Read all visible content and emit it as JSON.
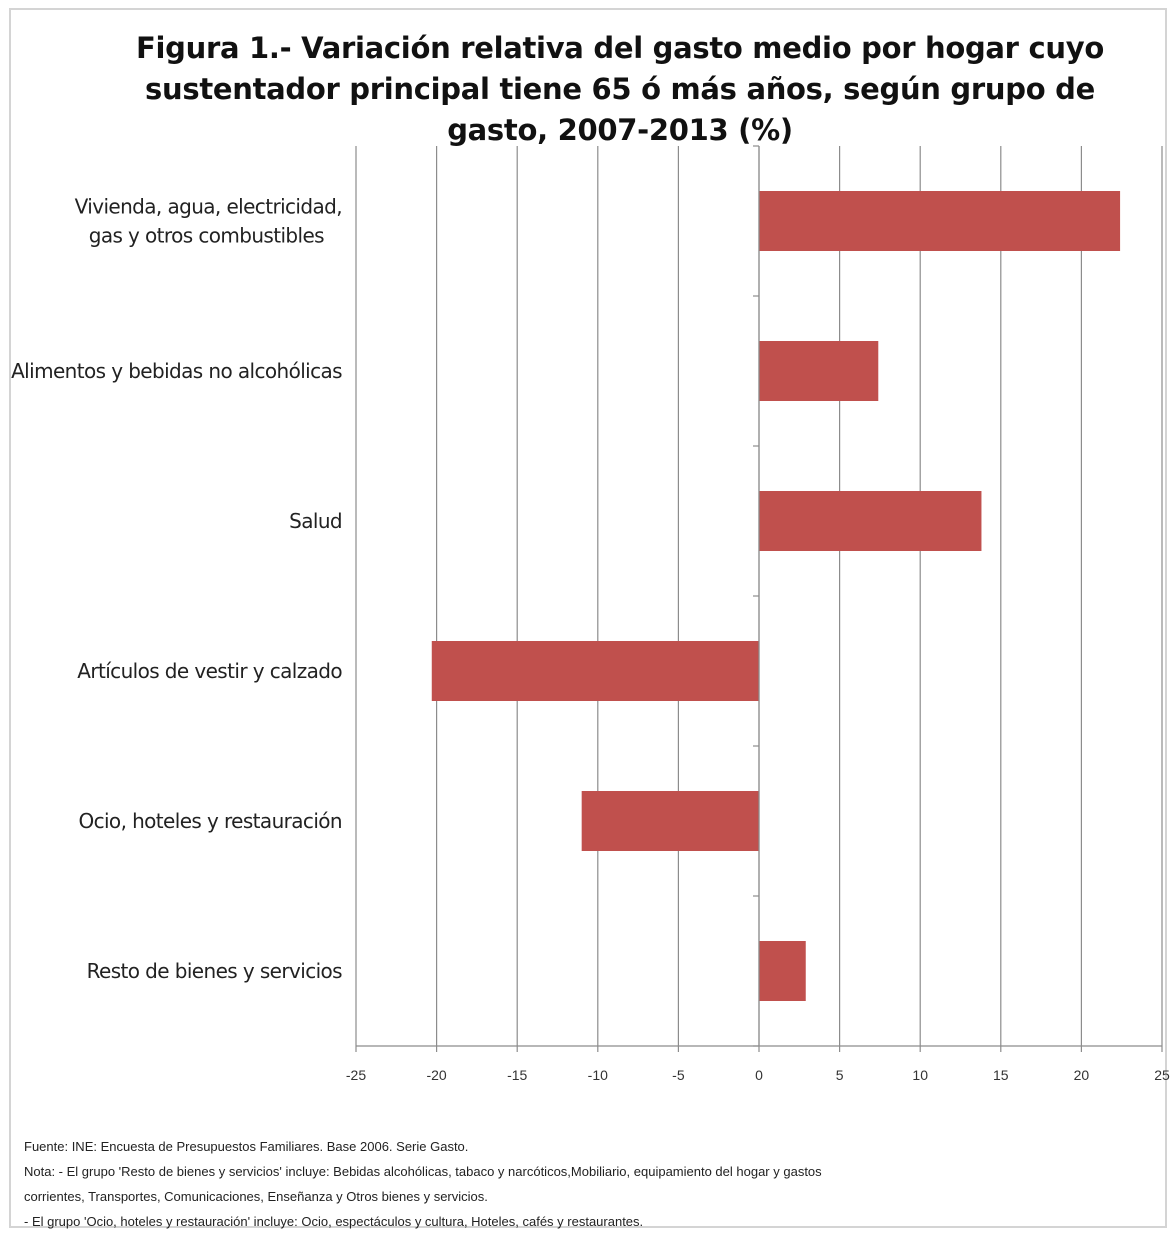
{
  "chart_data": {
    "type": "bar",
    "orientation": "horizontal",
    "title": "Figura 1.- Variación relativa del gasto medio por hogar cuyo sustentador principal tiene 65 ó más años, según grupo de gasto, 2007-2013 (%)",
    "categories": [
      "Vivienda, agua, electricidad, gas y otros combustibles",
      "Alimentos y bebidas no alcohólicas",
      "Salud",
      "Artículos de vestir y calzado",
      "Ocio, hoteles y restauración",
      "Resto de bienes y servicios"
    ],
    "category_lines": [
      [
        "Vivienda, agua, electricidad,",
        "gas y otros combustibles"
      ],
      [
        "Alimentos y bebidas no alcohólicas"
      ],
      [
        "Salud"
      ],
      [
        "Artículos de vestir y calzado"
      ],
      [
        "Ocio, hoteles y restauración"
      ],
      [
        "Resto de bienes y servicios"
      ]
    ],
    "values": [
      22.4,
      7.4,
      13.8,
      -20.3,
      -11.0,
      2.9
    ],
    "xlim": [
      -25,
      25
    ],
    "xticks": [
      -25,
      -20,
      -15,
      -10,
      -5,
      0,
      5,
      10,
      15,
      20,
      25
    ],
    "grid": true,
    "legend": "none",
    "bar_color": "#c0504d"
  },
  "notes": {
    "fuente": "Fuente: INE: Encuesta de Presupuestos Familiares. Base 2006. Serie Gasto.",
    "nota_1": "Nota: - El grupo 'Resto de bienes y servicios' incluye: Bebidas alcohólicas, tabaco y narcóticos,Mobiliario, equipamiento del hogar y gastos",
    "nota_1b": "corrientes, Transportes, Comunicaciones, Enseñanza y Otros bienes y servicios.",
    "nota_2": "- El grupo 'Ocio, hoteles y restauración' incluye: Ocio, espectáculos y cultura, Hoteles, cafés y restaurantes."
  }
}
